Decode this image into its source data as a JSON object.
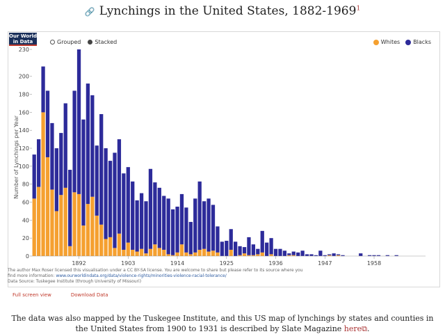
{
  "page": {
    "title": "Lynchings in the United States, 1882-1969",
    "footnote_marker": "1",
    "caption_before_link": "The data was also mapped by the Tuskegee Institute, and this US map of lynchings by states and counties in the United States from 1900 to 1931 is described by Slate Magazine ",
    "caption_link": "here",
    "caption_after_link": "."
  },
  "chart_header": {
    "logo_line1": "Our World",
    "logo_line2": "in Data",
    "mode_grouped": "Grouped",
    "mode_stacked": "Stacked",
    "selected_mode": "Stacked"
  },
  "chart_footer": {
    "license_line": "The author Max Roser licensed this visualisation under a CC BY-SA license. You are welcome to share but please refer to its source where you",
    "info_prefix": "find more information: ",
    "info_url": "www.ourworldindata.org/data/violence-rights/minorities-violence-racial-tolerance/",
    "source": "Data Source: Tuskegee Institute (through University of Missouri)",
    "full_screen": "Full screen view",
    "download": "Download Data"
  },
  "colors": {
    "whites": "#f5a030",
    "blacks": "#2d2b9a"
  },
  "chart_data": {
    "type": "bar",
    "stacked": true,
    "ylabel": "Number of Lynchings per Year",
    "ylim": [
      0,
      230
    ],
    "yticks": [
      0,
      20,
      40,
      60,
      80,
      100,
      120,
      140,
      160,
      180,
      200,
      230
    ],
    "xtick_labels": [
      "1892",
      "1903",
      "1914",
      "1925",
      "1936",
      "1947",
      "1958"
    ],
    "x": [
      1882,
      1883,
      1884,
      1885,
      1886,
      1887,
      1888,
      1889,
      1890,
      1891,
      1892,
      1893,
      1894,
      1895,
      1896,
      1897,
      1898,
      1899,
      1900,
      1901,
      1902,
      1903,
      1904,
      1905,
      1906,
      1907,
      1908,
      1909,
      1910,
      1911,
      1912,
      1913,
      1914,
      1915,
      1916,
      1917,
      1918,
      1919,
      1920,
      1921,
      1922,
      1923,
      1924,
      1925,
      1926,
      1927,
      1928,
      1929,
      1930,
      1931,
      1932,
      1933,
      1934,
      1935,
      1936,
      1937,
      1938,
      1939,
      1940,
      1941,
      1942,
      1943,
      1944,
      1945,
      1946,
      1947,
      1948,
      1949,
      1950,
      1951,
      1952,
      1953,
      1954,
      1955,
      1956,
      1957,
      1958,
      1959,
      1960,
      1961,
      1962,
      1963,
      1964,
      1965,
      1966,
      1967,
      1968,
      1969
    ],
    "series": [
      {
        "name": "Whites",
        "values": [
          64,
          77,
          160,
          110,
          74,
          50,
          68,
          76,
          11,
          71,
          69,
          34,
          58,
          66,
          45,
          35,
          19,
          21,
          9,
          25,
          7,
          15,
          7,
          5,
          8,
          3,
          8,
          13,
          9,
          7,
          2,
          1,
          4,
          13,
          4,
          2,
          4,
          7,
          8,
          5,
          6,
          4,
          0,
          0,
          7,
          0,
          1,
          3,
          1,
          1,
          2,
          4,
          0,
          2,
          0,
          0,
          0,
          1,
          1,
          0,
          0,
          0,
          0,
          0,
          0,
          0,
          1,
          0,
          1,
          0,
          0,
          0,
          0,
          0,
          0,
          0,
          0,
          0,
          0,
          0,
          0,
          0,
          0,
          0,
          0,
          0,
          0,
          0
        ]
      },
      {
        "name": "Blacks",
        "values": [
          49,
          53,
          51,
          74,
          74,
          70,
          69,
          94,
          85,
          113,
          161,
          118,
          134,
          113,
          78,
          123,
          101,
          85,
          106,
          105,
          85,
          84,
          76,
          57,
          62,
          58,
          89,
          69,
          67,
          60,
          62,
          51,
          51,
          56,
          50,
          36,
          60,
          76,
          53,
          59,
          51,
          29,
          16,
          17,
          23,
          16,
          10,
          7,
          20,
          12,
          6,
          24,
          15,
          18,
          8,
          8,
          6,
          2,
          4,
          4,
          6,
          2,
          2,
          1,
          6,
          1,
          1,
          3,
          1,
          1,
          0,
          0,
          0,
          3,
          0,
          1,
          1,
          1,
          0,
          1,
          0,
          1,
          0,
          0,
          0,
          0,
          0,
          0
        ]
      }
    ],
    "legend": [
      "Whites",
      "Blacks"
    ],
    "legend_position": "top-right",
    "grid": false
  }
}
